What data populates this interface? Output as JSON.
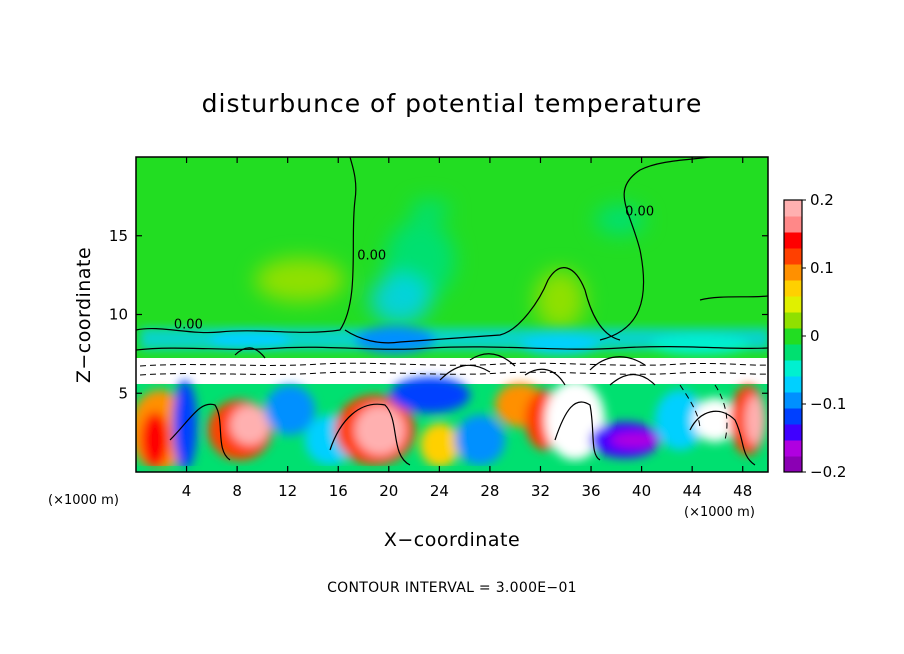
{
  "chart_data": {
    "type": "heatmap",
    "title": "disturbunce of potential temperature",
    "xlabel": "X−coordinate",
    "ylabel": "Z−coordinate",
    "x_unit_left": "(×1000 m)",
    "x_unit_right": "(×1000 m)",
    "xlim": [
      0,
      50
    ],
    "ylim": [
      0,
      20
    ],
    "x_ticks": [
      4,
      8,
      12,
      16,
      20,
      24,
      28,
      32,
      36,
      40,
      44,
      48
    ],
    "x_tick_labels": [
      "4",
      "8",
      "12",
      "16",
      "20",
      "24",
      "28",
      "32",
      "36",
      "40",
      "44",
      "48"
    ],
    "y_ticks": [
      5,
      10,
      15
    ],
    "y_tick_labels": [
      "5",
      "10",
      "15"
    ],
    "footer": "CONTOUR INTERVAL = 3.000E−01",
    "colorbar": {
      "range": [
        -0.2,
        0.2
      ],
      "ticks": [
        0.2,
        0.1,
        0,
        -0.1,
        -0.2
      ],
      "tick_labels": [
        "0.2",
        "0.1",
        "0",
        "−0.1",
        "−0.2"
      ],
      "colors": [
        "#8b00b4",
        "#b000e0",
        "#4000ff",
        "#0040ff",
        "#0090ff",
        "#00d0ff",
        "#00f0d0",
        "#00e070",
        "#22dd22",
        "#90e000",
        "#e0f000",
        "#ffd000",
        "#ff9000",
        "#ff4000",
        "#ff0000",
        "#ff8888",
        "#ffb0b0"
      ]
    },
    "contour_labels": [
      {
        "text": "0.00",
        "x": 3,
        "z": 9.1
      },
      {
        "text": "0.00",
        "x": 17.5,
        "z": 13.5
      },
      {
        "text": "0.00",
        "x": 38.7,
        "z": 16.3
      }
    ]
  }
}
